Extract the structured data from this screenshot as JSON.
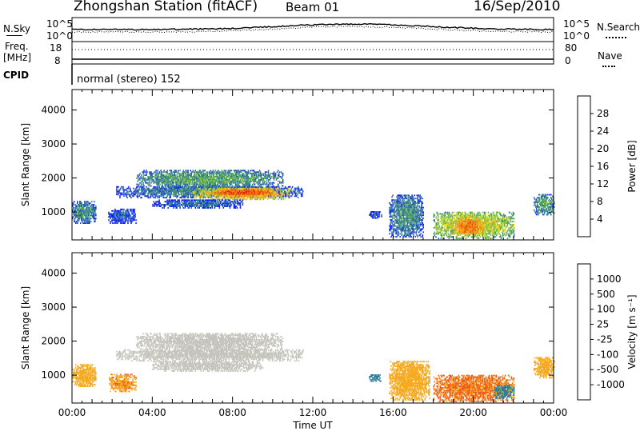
{
  "header": {
    "station": "Zhongshan Station (fitACF)",
    "beam": "Beam 01",
    "date": "16/Sep/2010"
  },
  "small_panels": {
    "nsky_label": "N.Sky",
    "nsearch_label": "N.Search",
    "freq_label": "Freq.",
    "freq_unit": "[MHz]",
    "nave_label": "Nave",
    "cpid_label": "CPID",
    "cpid_value": "normal (stereo) 152",
    "noise_ticks": [
      "10^5",
      "10^0"
    ],
    "freq_ticks": [
      "18",
      "8"
    ],
    "nave_ticks": [
      "80",
      "0"
    ]
  },
  "colors": {
    "power": [
      "#0a1ef5",
      "#1e4fbf",
      "#2f7a9a",
      "#4da05a",
      "#7cc23c",
      "#d8d61a",
      "#f6a81c",
      "#f27a10",
      "#ee4a0c",
      "#e31010"
    ],
    "velocity": [
      "#e31010",
      "#f05a12",
      "#f6a81c",
      "#cfc8bc",
      "#cfc8bc",
      "#7cc23c",
      "#2f7a9a",
      "#1e4fbf",
      "#0a1ef5"
    ],
    "ground_scatter": "#c4c4bc"
  },
  "chart_data": [
    {
      "type": "heatmap",
      "name": "power",
      "ylabel": "Slant Range [km]",
      "yticks": [
        1000,
        2000,
        3000,
        4000
      ],
      "ylim": [
        180,
        4600
      ],
      "xlim": [
        0,
        24
      ],
      "colorbar_label": "Power [dB]",
      "colorbar_ticks": [
        "4",
        "8",
        "12",
        "16",
        "20",
        "24",
        "28"
      ],
      "colorbar_range": [
        0,
        32
      ],
      "blobs": [
        {
          "t0": 0.0,
          "t1": 1.2,
          "r0": 650,
          "r1": 1300,
          "v": 10
        },
        {
          "t0": 1.8,
          "t1": 3.2,
          "r0": 650,
          "r1": 1100,
          "v": 6
        },
        {
          "t0": 2.2,
          "t1": 11.5,
          "r0": 1400,
          "r1": 1750,
          "v": 9
        },
        {
          "t0": 3.2,
          "t1": 10.5,
          "r0": 1700,
          "r1": 2200,
          "v": 12
        },
        {
          "t0": 6.0,
          "t1": 10.8,
          "r0": 1350,
          "r1": 1700,
          "v": 22
        },
        {
          "t0": 7.0,
          "t1": 10.0,
          "r0": 1450,
          "r1": 1650,
          "v": 28
        },
        {
          "t0": 4.0,
          "t1": 8.5,
          "r0": 1100,
          "r1": 1350,
          "v": 7
        },
        {
          "t0": 14.8,
          "t1": 15.4,
          "r0": 800,
          "r1": 1000,
          "v": 6
        },
        {
          "t0": 15.8,
          "t1": 17.5,
          "r0": 250,
          "r1": 1500,
          "v": 10
        },
        {
          "t0": 18.0,
          "t1": 22.0,
          "r0": 200,
          "r1": 1000,
          "v": 18
        },
        {
          "t0": 19.0,
          "t1": 20.5,
          "r0": 300,
          "r1": 800,
          "v": 25
        },
        {
          "t0": 23.0,
          "t1": 24.0,
          "r0": 900,
          "r1": 1500,
          "v": 12
        }
      ]
    },
    {
      "type": "heatmap",
      "name": "velocity",
      "xlabel": "Time UT",
      "ylabel": "Slant Range [km]",
      "xticks": [
        "00:00",
        "04:00",
        "08:00",
        "12:00",
        "16:00",
        "20:00",
        "00:00"
      ],
      "yticks": [
        1000,
        2000,
        3000,
        4000
      ],
      "ylim": [
        180,
        4600
      ],
      "xlim": [
        0,
        24
      ],
      "colorbar_label": "Velocity [m s⁻¹]",
      "colorbar_ticks": [
        "-1000",
        "-500",
        "-100",
        "-25",
        "25",
        "100",
        "500",
        "1000"
      ],
      "blobs": [
        {
          "t0": 0.0,
          "t1": 1.2,
          "r0": 650,
          "r1": 1300,
          "v": -300,
          "gs": false
        },
        {
          "t0": 1.8,
          "t1": 3.2,
          "r0": 500,
          "r1": 1000,
          "v": -400,
          "gs": false
        },
        {
          "t0": 2.2,
          "t1": 11.5,
          "r0": 1400,
          "r1": 1750,
          "v": 0,
          "gs": true
        },
        {
          "t0": 3.2,
          "t1": 10.5,
          "r0": 1700,
          "r1": 2200,
          "v": 0,
          "gs": true
        },
        {
          "t0": 4.0,
          "t1": 9.5,
          "r0": 1100,
          "r1": 1400,
          "v": 0,
          "gs": true
        },
        {
          "t0": 14.8,
          "t1": 15.4,
          "r0": 800,
          "r1": 1000,
          "v": 200,
          "gs": false
        },
        {
          "t0": 15.8,
          "t1": 17.8,
          "r0": 250,
          "r1": 1400,
          "v": -250,
          "gs": false
        },
        {
          "t0": 18.0,
          "t1": 22.0,
          "r0": 200,
          "r1": 1000,
          "v": -600,
          "gs": false
        },
        {
          "t0": 21.0,
          "t1": 22.0,
          "r0": 300,
          "r1": 700,
          "v": 150,
          "gs": false
        },
        {
          "t0": 23.0,
          "t1": 24.0,
          "r0": 900,
          "r1": 1500,
          "v": -200,
          "gs": false
        }
      ]
    }
  ]
}
